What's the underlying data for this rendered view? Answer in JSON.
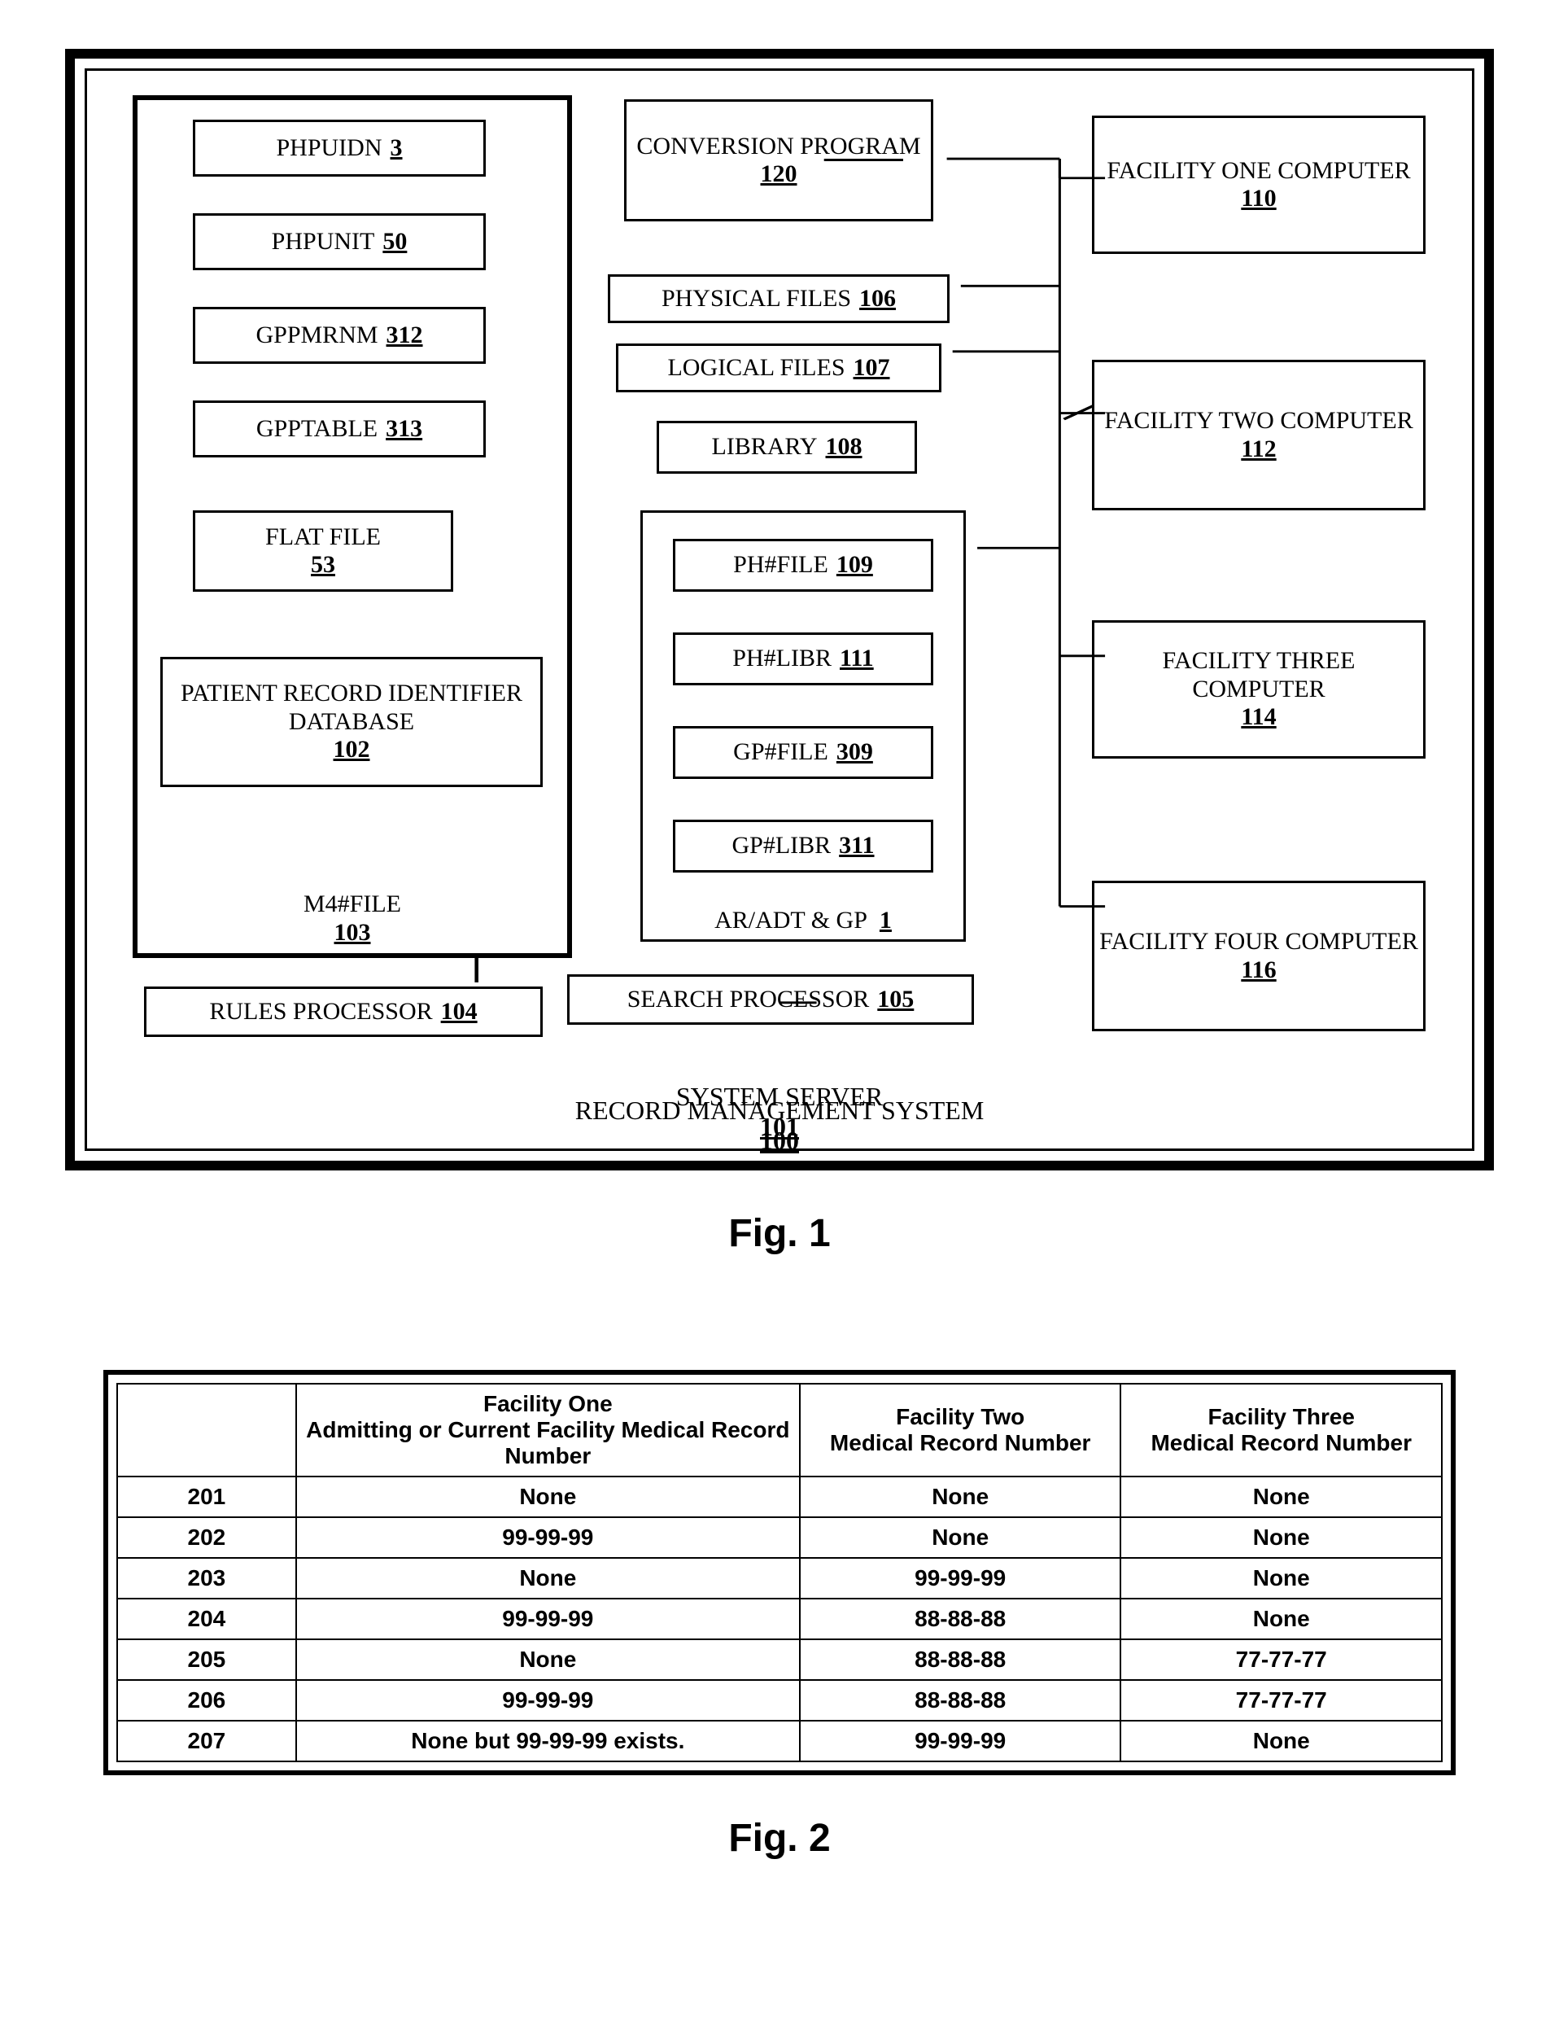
{
  "fig1": {
    "caption": "Fig. 1",
    "outer_label": {
      "text": "RECORD MANAGEMENT SYSTEM",
      "ref": "100"
    },
    "inner_label": {
      "text": "SYSTEM SERVER",
      "ref": "101"
    },
    "m4file_group": {
      "label": "M4#FILE",
      "ref": "103",
      "items": [
        {
          "name": "phpuidn",
          "label": "PHPUIDN",
          "ref": "3"
        },
        {
          "name": "phpunit",
          "label": "PHPUNIT",
          "ref": "50"
        },
        {
          "name": "gppmrnm",
          "label": "GPPMRNM",
          "ref": "312"
        },
        {
          "name": "gpptable",
          "label": "GPPTABLE",
          "ref": "313"
        },
        {
          "name": "flatfile",
          "label": "FLAT FILE",
          "ref": "53"
        },
        {
          "name": "prid",
          "label": "PATIENT RECORD IDENTIFIER DATABASE",
          "ref": "102"
        }
      ]
    },
    "conversion": {
      "label": "CONVERSION PROGRAM",
      "ref": "120"
    },
    "physical": {
      "label": "PHYSICAL FILES",
      "ref": "106"
    },
    "logical": {
      "label": "LOGICAL FILES",
      "ref": "107"
    },
    "library": {
      "label": "LIBRARY",
      "ref": "108"
    },
    "aradt": {
      "label": "AR/ADT & GP",
      "ref": "1",
      "items": [
        {
          "name": "phfile",
          "label": "PH#FILE",
          "ref": "109"
        },
        {
          "name": "phlibr",
          "label": "PH#LIBR",
          "ref": "111"
        },
        {
          "name": "gpfile",
          "label": "GP#FILE",
          "ref": "309"
        },
        {
          "name": "gplibr",
          "label": "GP#LIBR",
          "ref": "311"
        }
      ]
    },
    "rules": {
      "label": "RULES PROCESSOR",
      "ref": "104"
    },
    "search": {
      "label": "SEARCH PROCESSOR",
      "ref": "105"
    },
    "facilities": [
      {
        "name": "facility-one",
        "label": "FACILITY ONE COMPUTER",
        "ref": "110"
      },
      {
        "name": "facility-two",
        "label": "FACILITY TWO COMPUTER",
        "ref": "112"
      },
      {
        "name": "facility-three",
        "label": "FACILITY THREE COMPUTER",
        "ref": "114"
      },
      {
        "name": "facility-four",
        "label": "FACILITY FOUR COMPUTER",
        "ref": "116"
      }
    ]
  },
  "fig2": {
    "caption": "Fig. 2",
    "columns": [
      "",
      "Facility One\nAdmitting or Current Facility Medical Record Number",
      "Facility Two\nMedical Record Number",
      "Facility Three\nMedical Record Number"
    ],
    "rows": [
      {
        "key": "201",
        "cells": [
          "None",
          "None",
          "None"
        ]
      },
      {
        "key": "202",
        "cells": [
          "99-99-99",
          "None",
          "None"
        ]
      },
      {
        "key": "203",
        "cells": [
          "None",
          "99-99-99",
          "None"
        ]
      },
      {
        "key": "204",
        "cells": [
          "99-99-99",
          "88-88-88",
          "None"
        ]
      },
      {
        "key": "205",
        "cells": [
          "None",
          "88-88-88",
          "77-77-77"
        ]
      },
      {
        "key": "206",
        "cells": [
          "99-99-99",
          "88-88-88",
          "77-77-77"
        ]
      },
      {
        "key": "207",
        "cells": [
          "None but 99-99-99 exists.",
          "99-99-99",
          "None"
        ]
      }
    ]
  },
  "style": {
    "line_color": "#000000",
    "line_width": 3,
    "font_family": "Times New Roman",
    "table_font_family": "Arial",
    "background": "#ffffff"
  }
}
